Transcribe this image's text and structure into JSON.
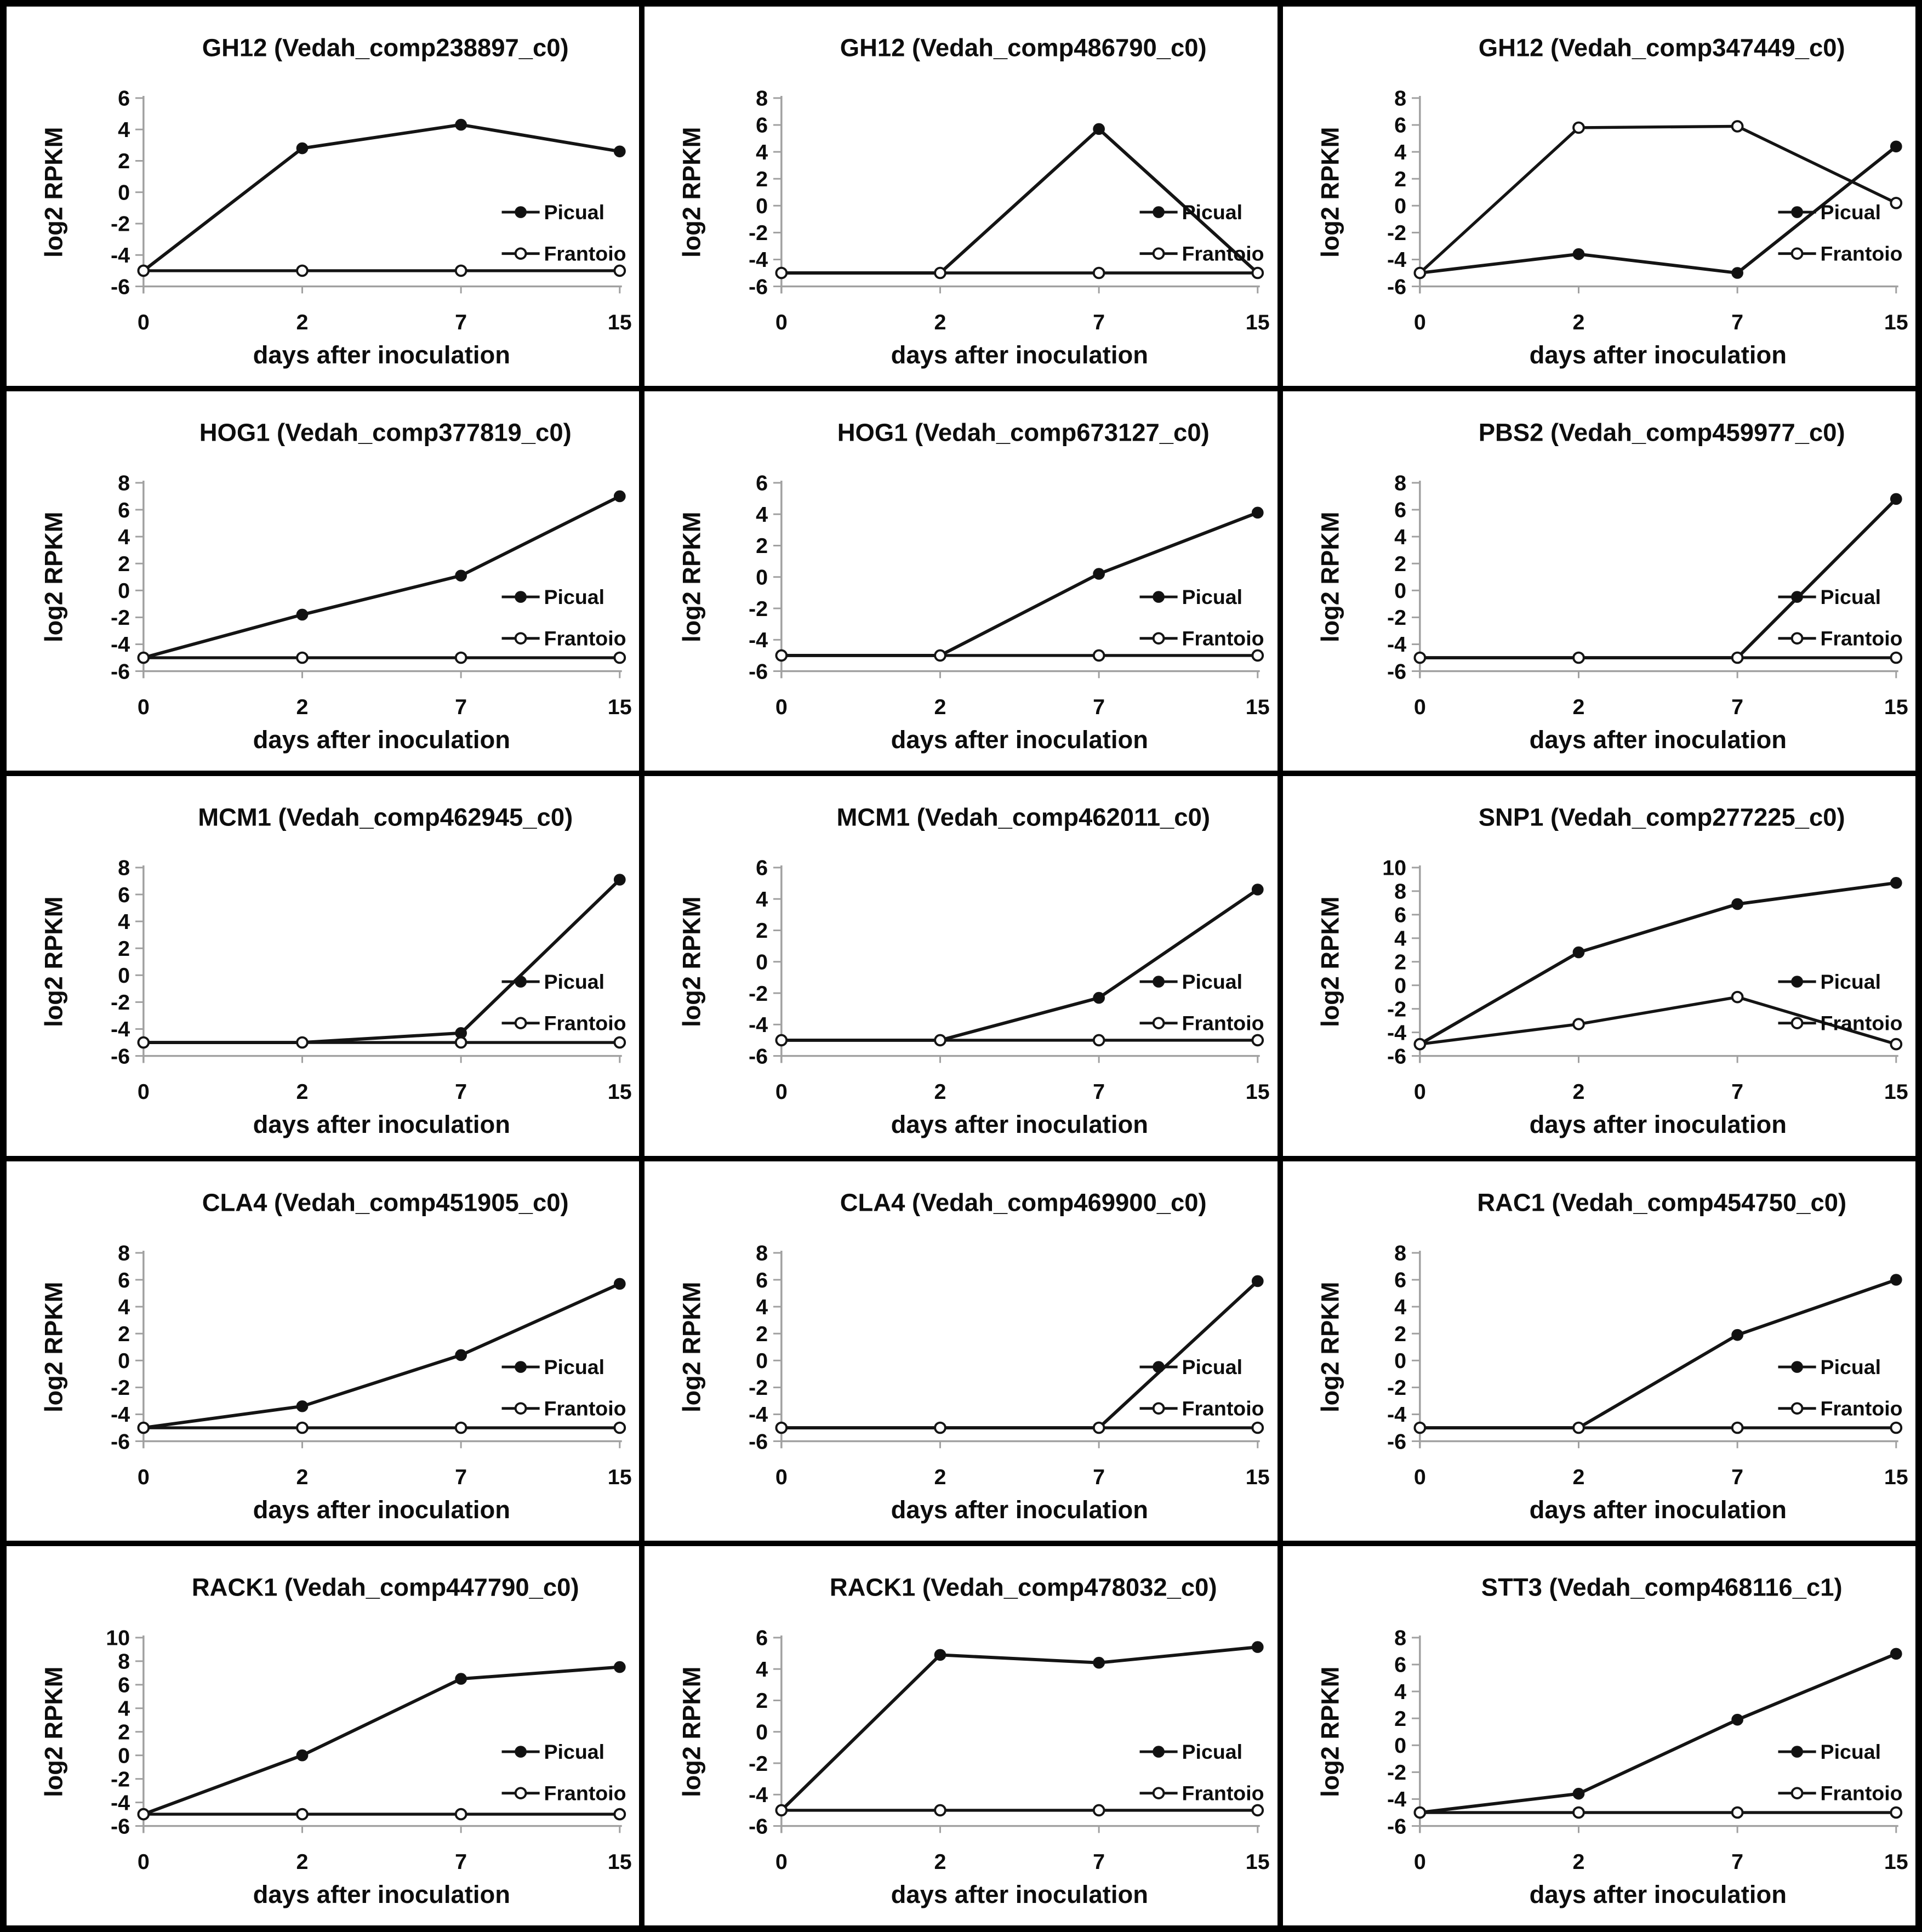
{
  "figure": {
    "description": "15-panel gene expression figure, log2 RPKM over days after inoculation for two olive cultivars",
    "xlabel": "days after inoculation",
    "ylabel": "log2 RPKM",
    "legend": [
      "Picual",
      "Frantoio"
    ],
    "colors": {
      "series_line": "#141414",
      "picual_marker": "#111111",
      "frantoio_marker_fill": "#ffffff",
      "axis_gray": "#a0a0a0",
      "text": "#0d0d0d",
      "frame": "#000000",
      "background": "#ffffff"
    }
  },
  "chart_data": [
    {
      "type": "line",
      "title": "GH12 (Vedah_comp238897_c0)",
      "xlabel": "days after inoculation",
      "ylabel": "log2 RPKM",
      "x": [
        0,
        2,
        7,
        15
      ],
      "ylim": [
        -6,
        6
      ],
      "ytick_step": 2,
      "legend_position": "right",
      "grid": false,
      "series": [
        {
          "name": "Picual",
          "marker": "filled-circle",
          "values": [
            -5,
            2.8,
            4.3,
            2.6
          ]
        },
        {
          "name": "Frantoio",
          "marker": "open-circle",
          "values": [
            -5,
            -5,
            -5,
            -5
          ]
        }
      ]
    },
    {
      "type": "line",
      "title": "GH12 (Vedah_comp486790_c0)",
      "xlabel": "days after inoculation",
      "ylabel": "log2 RPKM",
      "x": [
        0,
        2,
        7,
        15
      ],
      "ylim": [
        -6,
        8
      ],
      "ytick_step": 2,
      "legend_position": "right",
      "grid": false,
      "series": [
        {
          "name": "Picual",
          "marker": "filled-circle",
          "values": [
            -5,
            -5,
            5.7,
            -5
          ]
        },
        {
          "name": "Frantoio",
          "marker": "open-circle",
          "values": [
            -5,
            -5,
            -5,
            -5
          ]
        }
      ]
    },
    {
      "type": "line",
      "title": "GH12 (Vedah_comp347449_c0)",
      "xlabel": "days after inoculation",
      "ylabel": "log2 RPKM",
      "x": [
        0,
        2,
        7,
        15
      ],
      "ylim": [
        -6,
        8
      ],
      "ytick_step": 2,
      "legend_position": "right",
      "grid": false,
      "series": [
        {
          "name": "Picual",
          "marker": "filled-circle",
          "values": [
            -5,
            -3.6,
            -5,
            4.4
          ]
        },
        {
          "name": "Frantoio",
          "marker": "open-circle",
          "values": [
            -5,
            5.8,
            5.9,
            0.2
          ]
        }
      ]
    },
    {
      "type": "line",
      "title": "HOG1 (Vedah_comp377819_c0)",
      "xlabel": "days after inoculation",
      "ylabel": "log2 RPKM",
      "x": [
        0,
        2,
        7,
        15
      ],
      "ylim": [
        -6,
        8
      ],
      "ytick_step": 2,
      "legend_position": "right",
      "grid": false,
      "series": [
        {
          "name": "Picual",
          "marker": "filled-circle",
          "values": [
            -5,
            -1.8,
            1.1,
            7.0
          ]
        },
        {
          "name": "Frantoio",
          "marker": "open-circle",
          "values": [
            -5,
            -5,
            -5,
            -5
          ]
        }
      ]
    },
    {
      "type": "line",
      "title": "HOG1 (Vedah_comp673127_c0)",
      "xlabel": "days after inoculation",
      "ylabel": "log2 RPKM",
      "x": [
        0,
        2,
        7,
        15
      ],
      "ylim": [
        -6,
        6
      ],
      "ytick_step": 2,
      "legend_position": "right",
      "grid": false,
      "series": [
        {
          "name": "Picual",
          "marker": "filled-circle",
          "values": [
            -5,
            -5,
            0.2,
            4.1
          ]
        },
        {
          "name": "Frantoio",
          "marker": "open-circle",
          "values": [
            -5,
            -5,
            -5,
            -5
          ]
        }
      ]
    },
    {
      "type": "line",
      "title": "PBS2 (Vedah_comp459977_c0)",
      "xlabel": "days after inoculation",
      "ylabel": "log2 RPKM",
      "x": [
        0,
        2,
        7,
        15
      ],
      "ylim": [
        -6,
        8
      ],
      "ytick_step": 2,
      "legend_position": "right",
      "grid": false,
      "series": [
        {
          "name": "Picual",
          "marker": "filled-circle",
          "values": [
            -5,
            -5,
            -5,
            6.8
          ]
        },
        {
          "name": "Frantoio",
          "marker": "open-circle",
          "values": [
            -5,
            -5,
            -5,
            -5
          ]
        }
      ]
    },
    {
      "type": "line",
      "title": "MCM1 (Vedah_comp462945_c0)",
      "xlabel": "days after inoculation",
      "ylabel": "log2 RPKM",
      "x": [
        0,
        2,
        7,
        15
      ],
      "ylim": [
        -6,
        8
      ],
      "ytick_step": 2,
      "legend_position": "right",
      "grid": false,
      "series": [
        {
          "name": "Picual",
          "marker": "filled-circle",
          "values": [
            -5,
            -5,
            -4.3,
            7.1
          ]
        },
        {
          "name": "Frantoio",
          "marker": "open-circle",
          "values": [
            -5,
            -5,
            -5,
            -5
          ]
        }
      ]
    },
    {
      "type": "line",
      "title": "MCM1 (Vedah_comp462011_c0)",
      "xlabel": "days after inoculation",
      "ylabel": "log2 RPKM",
      "x": [
        0,
        2,
        7,
        15
      ],
      "ylim": [
        -6,
        6
      ],
      "ytick_step": 2,
      "legend_position": "right",
      "grid": false,
      "series": [
        {
          "name": "Picual",
          "marker": "filled-circle",
          "values": [
            -5,
            -5,
            -2.3,
            4.6
          ]
        },
        {
          "name": "Frantoio",
          "marker": "open-circle",
          "values": [
            -5,
            -5,
            -5,
            -5
          ]
        }
      ]
    },
    {
      "type": "line",
      "title": "SNP1 (Vedah_comp277225_c0)",
      "xlabel": "days after inoculation",
      "ylabel": "log2 RPKM",
      "x": [
        0,
        2,
        7,
        15
      ],
      "ylim": [
        -6,
        10
      ],
      "ytick_step": 2,
      "legend_position": "right",
      "grid": false,
      "series": [
        {
          "name": "Picual",
          "marker": "filled-circle",
          "values": [
            -5,
            2.8,
            6.9,
            8.7
          ]
        },
        {
          "name": "Frantoio",
          "marker": "open-circle",
          "values": [
            -5,
            -3.3,
            -1.0,
            -5
          ]
        }
      ]
    },
    {
      "type": "line",
      "title": "CLA4 (Vedah_comp451905_c0)",
      "xlabel": "days after inoculation",
      "ylabel": "log2 RPKM",
      "x": [
        0,
        2,
        7,
        15
      ],
      "ylim": [
        -6,
        8
      ],
      "ytick_step": 2,
      "legend_position": "right",
      "grid": false,
      "series": [
        {
          "name": "Picual",
          "marker": "filled-circle",
          "values": [
            -5,
            -3.4,
            0.4,
            5.7
          ]
        },
        {
          "name": "Frantoio",
          "marker": "open-circle",
          "values": [
            -5,
            -5,
            -5,
            -5
          ]
        }
      ]
    },
    {
      "type": "line",
      "title": "CLA4 (Vedah_comp469900_c0)",
      "xlabel": "days after inoculation",
      "ylabel": "log2 RPKM",
      "x": [
        0,
        2,
        7,
        15
      ],
      "ylim": [
        -6,
        8
      ],
      "ytick_step": 2,
      "legend_position": "right",
      "grid": false,
      "series": [
        {
          "name": "Picual",
          "marker": "filled-circle",
          "values": [
            -5,
            -5,
            -5,
            5.9
          ]
        },
        {
          "name": "Frantoio",
          "marker": "open-circle",
          "values": [
            -5,
            -5,
            -5,
            -5
          ]
        }
      ]
    },
    {
      "type": "line",
      "title": "RAC1 (Vedah_comp454750_c0)",
      "xlabel": "days after inoculation",
      "ylabel": "log2 RPKM",
      "x": [
        0,
        2,
        7,
        15
      ],
      "ylim": [
        -6,
        8
      ],
      "ytick_step": 2,
      "legend_position": "right",
      "grid": false,
      "series": [
        {
          "name": "Picual",
          "marker": "filled-circle",
          "values": [
            -5,
            -5,
            1.9,
            6.0
          ]
        },
        {
          "name": "Frantoio",
          "marker": "open-circle",
          "values": [
            -5,
            -5,
            -5,
            -5
          ]
        }
      ]
    },
    {
      "type": "line",
      "title": "RACK1 (Vedah_comp447790_c0)",
      "xlabel": "days after inoculation",
      "ylabel": "log2 RPKM",
      "x": [
        0,
        2,
        7,
        15
      ],
      "ylim": [
        -6,
        10
      ],
      "ytick_step": 2,
      "legend_position": "right",
      "grid": false,
      "series": [
        {
          "name": "Picual",
          "marker": "filled-circle",
          "values": [
            -5,
            0.0,
            6.5,
            7.5
          ]
        },
        {
          "name": "Frantoio",
          "marker": "open-circle",
          "values": [
            -5,
            -5,
            -5,
            -5
          ]
        }
      ]
    },
    {
      "type": "line",
      "title": "RACK1 (Vedah_comp478032_c0)",
      "xlabel": "days after inoculation",
      "ylabel": "log2 RPKM",
      "x": [
        0,
        2,
        7,
        15
      ],
      "ylim": [
        -6,
        6
      ],
      "ytick_step": 2,
      "legend_position": "right",
      "grid": false,
      "series": [
        {
          "name": "Picual",
          "marker": "filled-circle",
          "values": [
            -5,
            4.9,
            4.4,
            5.4
          ]
        },
        {
          "name": "Frantoio",
          "marker": "open-circle",
          "values": [
            -5,
            -5,
            -5,
            -5
          ]
        }
      ]
    },
    {
      "type": "line",
      "title": "STT3 (Vedah_comp468116_c1)",
      "xlabel": "days after inoculation",
      "ylabel": "log2 RPKM",
      "x": [
        0,
        2,
        7,
        15
      ],
      "ylim": [
        -6,
        8
      ],
      "ytick_step": 2,
      "legend_position": "right",
      "grid": false,
      "series": [
        {
          "name": "Picual",
          "marker": "filled-circle",
          "values": [
            -5,
            -3.6,
            1.9,
            6.8
          ]
        },
        {
          "name": "Frantoio",
          "marker": "open-circle",
          "values": [
            -5,
            -5,
            -5,
            -5
          ]
        }
      ]
    }
  ]
}
